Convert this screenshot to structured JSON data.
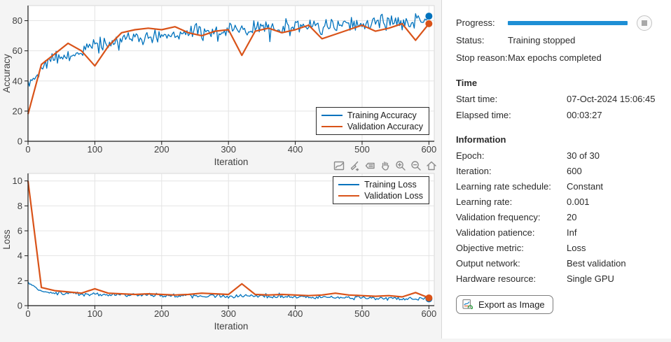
{
  "app": {
    "accent_blue": "#0072BD",
    "accent_orange": "#D95319",
    "progress_blue": "#1E8FD5"
  },
  "panel": {
    "progress_label": "Progress:",
    "progress_percent": 100,
    "status_label": "Status:",
    "status_value": "Training stopped",
    "stop_reason_label": "Stop reason:",
    "stop_reason_value": "Max epochs completed",
    "time_header": "Time",
    "time_rows": [
      {
        "label": "Start time:",
        "value": "07-Oct-2024 15:06:45"
      },
      {
        "label": "Elapsed time:",
        "value": "00:03:27"
      }
    ],
    "information_header": "Information",
    "info_rows": [
      {
        "label": "Epoch:",
        "value": "30 of 30"
      },
      {
        "label": "Iteration:",
        "value": "600"
      },
      {
        "label": "Learning rate schedule:",
        "value": "Constant"
      },
      {
        "label": "Learning rate:",
        "value": "0.001"
      },
      {
        "label": "Validation frequency:",
        "value": "20"
      },
      {
        "label": "Validation patience:",
        "value": "Inf"
      },
      {
        "label": "Objective metric:",
        "value": "Loss"
      },
      {
        "label": "Output network:",
        "value": "Best validation"
      },
      {
        "label": "Hardware resource:",
        "value": "Single GPU"
      }
    ],
    "export_button_label": "Export as Image"
  },
  "axes_toolbar": {
    "icons": [
      "export-plot-icon",
      "brush-icon",
      "datatips-icon",
      "pan-icon",
      "zoom-in-icon",
      "zoom-out-icon",
      "restore-view-icon"
    ]
  },
  "chart_data": [
    {
      "type": "line",
      "title": "",
      "xlabel": "Iteration",
      "ylabel": "Accuracy",
      "xlim": [
        0,
        608
      ],
      "ylim": [
        0,
        90
      ],
      "xticks": [
        0,
        100,
        200,
        300,
        400,
        500,
        600
      ],
      "yticks": [
        0,
        20,
        40,
        60,
        80
      ],
      "grid": true,
      "legend_position": "lower right inside",
      "series": [
        {
          "name": "Training Accuracy",
          "color": "#0072BD",
          "x_step": 20,
          "seed": 42,
          "noise_amplitude": 5,
          "clamp": [
            15,
            88
          ],
          "trend": [
            38,
            50,
            54,
            57,
            60,
            63,
            65,
            66,
            68,
            69,
            70,
            71,
            72,
            72,
            73,
            73,
            74,
            74,
            75,
            75,
            76,
            76,
            76,
            77,
            77,
            78,
            78,
            79,
            79,
            80,
            83
          ],
          "end_marker": {
            "x": 600,
            "y": 83
          }
        },
        {
          "name": "Validation Accuracy",
          "color": "#D95319",
          "x_step": 20,
          "values": [
            18,
            51,
            58,
            65,
            60,
            50,
            63,
            72,
            74,
            75,
            74,
            76,
            72,
            70,
            73,
            74,
            57,
            73,
            75,
            72,
            74,
            77,
            68,
            71,
            74,
            77,
            73,
            75,
            78,
            67,
            78
          ],
          "end_marker": {
            "x": 600,
            "y": 78
          }
        }
      ]
    },
    {
      "type": "line",
      "title": "",
      "xlabel": "Iteration",
      "ylabel": "Loss",
      "xlim": [
        0,
        608
      ],
      "ylim": [
        0,
        10.6
      ],
      "xticks": [
        0,
        100,
        200,
        300,
        400,
        500,
        600
      ],
      "yticks": [
        0,
        2,
        4,
        6,
        8,
        10
      ],
      "grid": true,
      "legend_position": "upper right inside",
      "series": [
        {
          "name": "Training Loss",
          "color": "#0072BD",
          "x_step": 20,
          "seed": 99,
          "noise_amplitude": 0.14,
          "clamp": [
            0.3,
            2.2
          ],
          "trend": [
            1.9,
            1.1,
            1.0,
            0.95,
            0.92,
            0.9,
            0.88,
            0.86,
            0.85,
            0.84,
            0.83,
            0.82,
            0.8,
            0.8,
            0.78,
            0.76,
            0.75,
            0.74,
            0.73,
            0.72,
            0.7,
            0.68,
            0.66,
            0.65,
            0.64,
            0.62,
            0.6,
            0.58,
            0.57,
            0.56,
            0.55
          ],
          "end_marker": {
            "x": 600,
            "y": 0.55
          }
        },
        {
          "name": "Validation Loss",
          "color": "#D95319",
          "x_step": 20,
          "values": [
            10,
            1.45,
            1.2,
            1.1,
            1.0,
            1.35,
            1.0,
            0.95,
            0.9,
            0.95,
            0.9,
            0.85,
            0.9,
            1.0,
            0.95,
            0.9,
            1.75,
            0.9,
            0.85,
            0.9,
            0.85,
            0.8,
            0.85,
            1.0,
            0.85,
            0.8,
            0.75,
            0.8,
            0.7,
            1.05,
            0.62
          ],
          "end_marker": {
            "x": 600,
            "y": 0.62
          }
        }
      ]
    }
  ]
}
